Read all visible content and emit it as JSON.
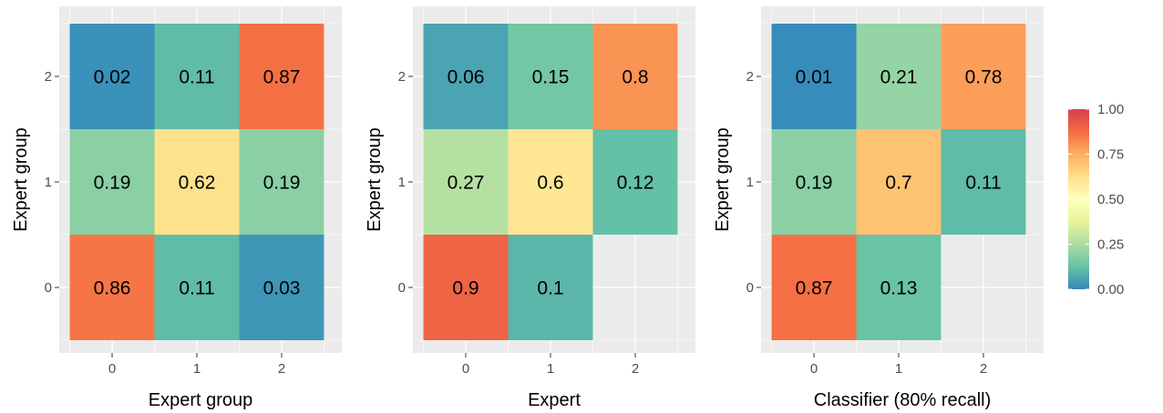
{
  "chart_data": [
    {
      "type": "heatmap",
      "xlabel": "Expert group",
      "ylabel": "Expert group",
      "x_categories": [
        "0",
        "1",
        "2"
      ],
      "y_categories": [
        "0",
        "1",
        "2"
      ],
      "cells": [
        {
          "x": "0",
          "y": "2",
          "value": 0.02,
          "label": "0.02"
        },
        {
          "x": "1",
          "y": "2",
          "value": 0.11,
          "label": "0.11"
        },
        {
          "x": "2",
          "y": "2",
          "value": 0.87,
          "label": "0.87"
        },
        {
          "x": "0",
          "y": "1",
          "value": 0.19,
          "label": "0.19"
        },
        {
          "x": "1",
          "y": "1",
          "value": 0.62,
          "label": "0.62"
        },
        {
          "x": "2",
          "y": "1",
          "value": 0.19,
          "label": "0.19"
        },
        {
          "x": "0",
          "y": "0",
          "value": 0.86,
          "label": "0.86"
        },
        {
          "x": "1",
          "y": "0",
          "value": 0.11,
          "label": "0.11"
        },
        {
          "x": "2",
          "y": "0",
          "value": 0.03,
          "label": "0.03"
        }
      ]
    },
    {
      "type": "heatmap",
      "xlabel": "Expert",
      "ylabel": "Expert group",
      "x_categories": [
        "0",
        "1",
        "2"
      ],
      "y_categories": [
        "0",
        "1",
        "2"
      ],
      "cells": [
        {
          "x": "0",
          "y": "2",
          "value": 0.06,
          "label": "0.06"
        },
        {
          "x": "1",
          "y": "2",
          "value": 0.15,
          "label": "0.15"
        },
        {
          "x": "2",
          "y": "2",
          "value": 0.8,
          "label": "0.8"
        },
        {
          "x": "0",
          "y": "1",
          "value": 0.27,
          "label": "0.27"
        },
        {
          "x": "1",
          "y": "1",
          "value": 0.6,
          "label": "0.6"
        },
        {
          "x": "2",
          "y": "1",
          "value": 0.12,
          "label": "0.12"
        },
        {
          "x": "0",
          "y": "0",
          "value": 0.9,
          "label": "0.9"
        },
        {
          "x": "1",
          "y": "0",
          "value": 0.1,
          "label": "0.1"
        }
      ]
    },
    {
      "type": "heatmap",
      "xlabel": "Classifier (80% recall)",
      "ylabel": "Expert group",
      "x_categories": [
        "0",
        "1",
        "2"
      ],
      "y_categories": [
        "0",
        "1",
        "2"
      ],
      "cells": [
        {
          "x": "0",
          "y": "2",
          "value": 0.01,
          "label": "0.01"
        },
        {
          "x": "1",
          "y": "2",
          "value": 0.21,
          "label": "0.21"
        },
        {
          "x": "2",
          "y": "2",
          "value": 0.78,
          "label": "0.78"
        },
        {
          "x": "0",
          "y": "1",
          "value": 0.19,
          "label": "0.19"
        },
        {
          "x": "1",
          "y": "1",
          "value": 0.7,
          "label": "0.7"
        },
        {
          "x": "2",
          "y": "1",
          "value": 0.11,
          "label": "0.11"
        },
        {
          "x": "0",
          "y": "0",
          "value": 0.87,
          "label": "0.87"
        },
        {
          "x": "1",
          "y": "0",
          "value": 0.13,
          "label": "0.13"
        }
      ]
    }
  ],
  "legend": {
    "placement": "right",
    "range": [
      0,
      1
    ],
    "breaks": [
      0,
      0.25,
      0.5,
      0.75,
      1
    ],
    "labels": [
      "0.00",
      "0.25",
      "0.50",
      "0.75",
      "1.00"
    ],
    "palette": [
      "#3288bd",
      "#66c2a5",
      "#abdda4",
      "#e6f598",
      "#ffffbf",
      "#fee08b",
      "#fdae61",
      "#f46d43",
      "#d53e4f"
    ]
  },
  "panel_background": "#ebebeb",
  "grid_color": "#ffffff"
}
